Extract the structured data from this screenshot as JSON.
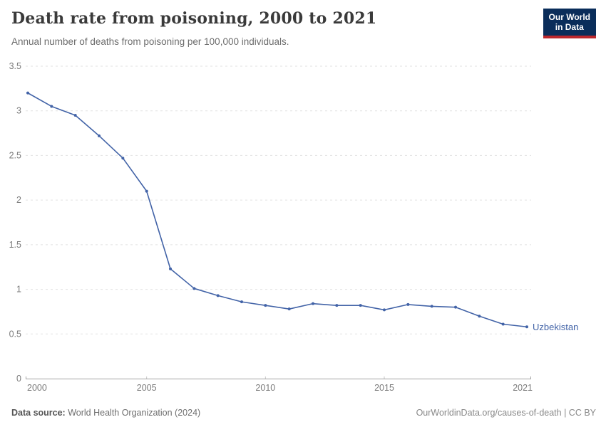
{
  "header": {
    "title": "Death rate from poisoning, 2000 to 2021",
    "subtitle": "Annual number of deaths from poisoning per 100,000 individuals."
  },
  "logo": {
    "line1": "Our World",
    "line2": "in Data",
    "bg_color": "#0a2d5a",
    "accent_color": "#bc282d"
  },
  "chart_data": {
    "type": "line",
    "title": "Death rate from poisoning, 2000 to 2021",
    "xlabel": "",
    "ylabel": "",
    "x": [
      2000,
      2001,
      2002,
      2003,
      2004,
      2005,
      2006,
      2007,
      2008,
      2009,
      2010,
      2011,
      2012,
      2013,
      2014,
      2015,
      2016,
      2017,
      2018,
      2019,
      2020,
      2021
    ],
    "series": [
      {
        "name": "Uzbekistan",
        "color": "#4263a7",
        "values": [
          3.2,
          3.05,
          2.95,
          2.72,
          2.47,
          2.1,
          1.23,
          1.01,
          0.93,
          0.86,
          0.82,
          0.78,
          0.84,
          0.82,
          0.82,
          0.77,
          0.83,
          0.81,
          0.8,
          0.7,
          0.61,
          0.58
        ]
      }
    ],
    "xlim": [
      2000,
      2021
    ],
    "ylim": [
      0,
      3.5
    ],
    "xticks": [
      2000,
      2005,
      2010,
      2015,
      2021
    ],
    "yticks": [
      0,
      0.5,
      1,
      1.5,
      2,
      2.5,
      3,
      3.5
    ],
    "grid": "horizontal-dashed",
    "legend_position": "end-of-line-label"
  },
  "footer": {
    "source_label": "Data source:",
    "source_value": "World Health Organization (2024)",
    "license": "OurWorldinData.org/causes-of-death | CC BY"
  }
}
